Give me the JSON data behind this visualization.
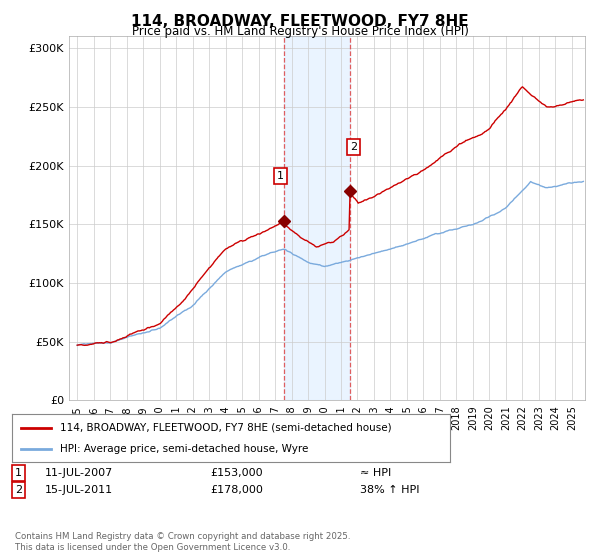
{
  "title": "114, BROADWAY, FLEETWOOD, FY7 8HE",
  "subtitle": "Price paid vs. HM Land Registry's House Price Index (HPI)",
  "legend_line1": "114, BROADWAY, FLEETWOOD, FY7 8HE (semi-detached house)",
  "legend_line2": "HPI: Average price, semi-detached house, Wyre",
  "sale1_date": "11-JUL-2007",
  "sale1_price": "£153,000",
  "sale1_hpi": "≈ HPI",
  "sale2_date": "15-JUL-2011",
  "sale2_price": "£178,000",
  "sale2_hpi": "38% ↑ HPI",
  "footnote": "Contains HM Land Registry data © Crown copyright and database right 2025.\nThis data is licensed under the Open Government Licence v3.0.",
  "color_red": "#cc0000",
  "color_blue": "#7aaadd",
  "bg_color": "#ffffff",
  "grid_color": "#cccccc",
  "shade_color": "#ddeeff",
  "ylim": [
    0,
    310000
  ],
  "yticks": [
    0,
    50000,
    100000,
    150000,
    200000,
    250000,
    300000
  ],
  "ytick_labels": [
    "£0",
    "£50K",
    "£100K",
    "£150K",
    "£200K",
    "£250K",
    "£300K"
  ],
  "sale1_x": 2007.53,
  "sale1_y": 153000,
  "sale2_x": 2011.54,
  "sale2_y": 178000,
  "xlim_min": 1994.5,
  "xlim_max": 2025.8
}
